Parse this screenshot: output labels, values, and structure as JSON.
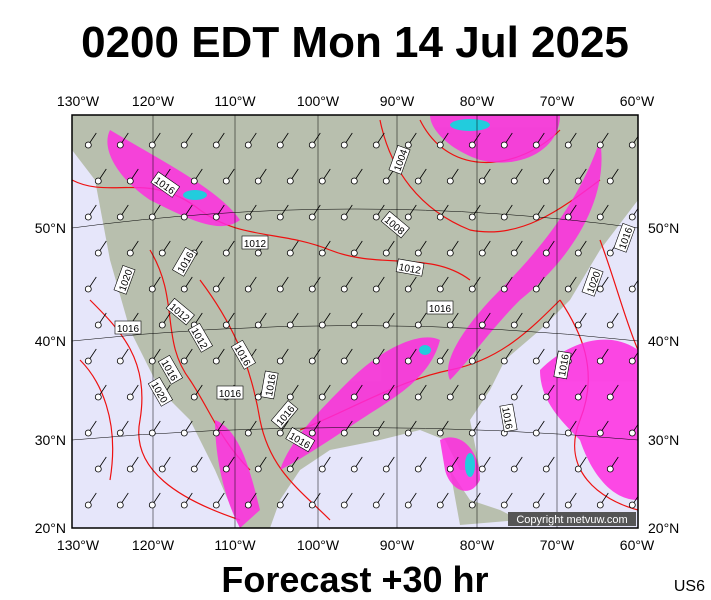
{
  "header": {
    "title": "0200 EDT Mon 14 Jul 2025"
  },
  "map": {
    "lon_labels_top": [
      "130°W",
      "120°W",
      "110°W",
      "100°W",
      "90°W",
      "80°W",
      "70°W",
      "60°W"
    ],
    "lon_labels_bottom": [
      "130°W",
      "120°W",
      "110°W",
      "100°W",
      "90°W",
      "80°W",
      "70°W",
      "60°W"
    ],
    "lat_labels_left": [
      "50°N",
      "40°N",
      "30°N",
      "20°N"
    ],
    "lat_labels_right": [
      "50°N",
      "40°N",
      "30°N",
      "20°N"
    ],
    "isobar_labels": [
      "1016",
      "1004",
      "1008",
      "1012",
      "1012",
      "1016",
      "1020",
      "1016",
      "1016",
      "1012",
      "1012",
      "1016",
      "1016",
      "1020",
      "1016",
      "1016",
      "1016",
      "1016",
      "1020",
      "1016",
      "1016",
      "1016"
    ],
    "copyright": "Copyright metvuw.com"
  },
  "footer": {
    "forecast": "Forecast +30 hr",
    "region": "US6"
  }
}
